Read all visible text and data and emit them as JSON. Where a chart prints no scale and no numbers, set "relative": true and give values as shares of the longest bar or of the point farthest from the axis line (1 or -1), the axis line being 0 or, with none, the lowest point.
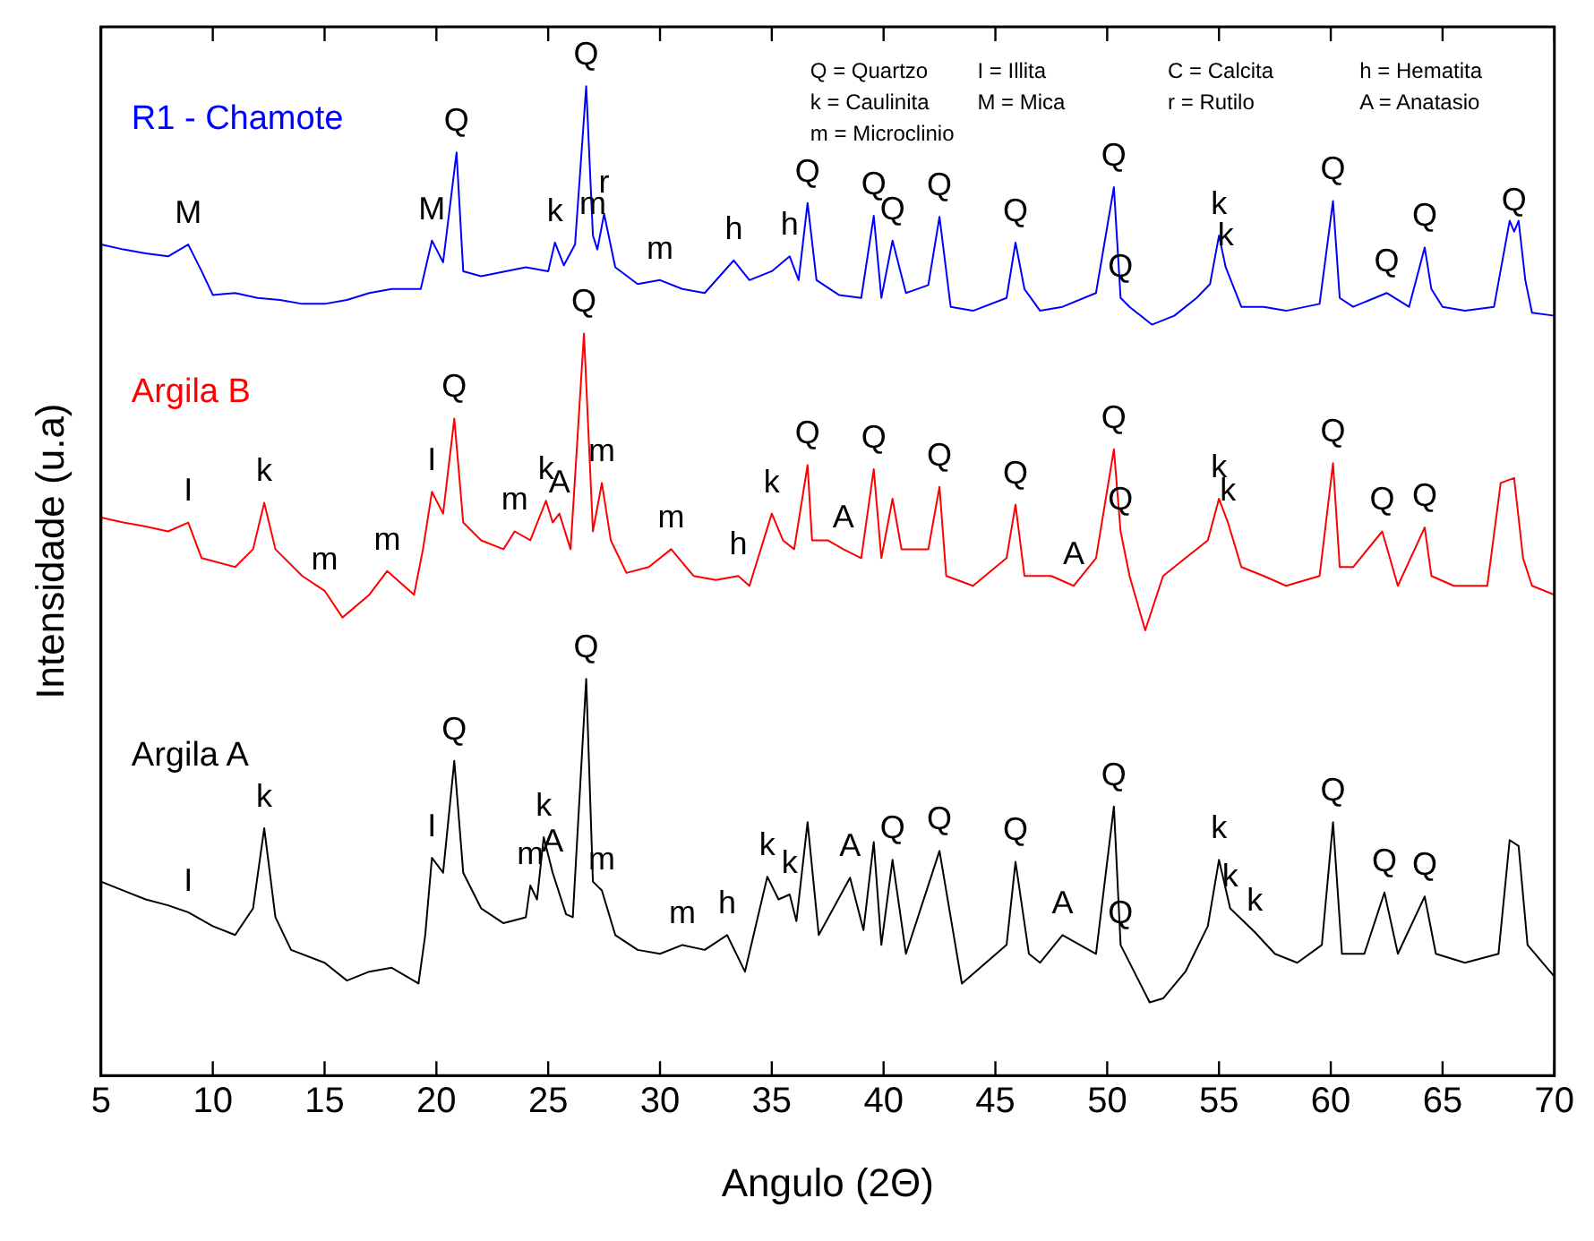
{
  "chart_data": {
    "type": "line",
    "xlabel": "Angulo (2Θ)",
    "ylabel": "Intensidade (u.a)",
    "relative": true,
    "xlim": [
      5,
      70
    ],
    "xticks": [
      5,
      10,
      15,
      20,
      25,
      30,
      35,
      40,
      45,
      50,
      55,
      60,
      65,
      70
    ],
    "grid": false,
    "legend": false,
    "marker": "none",
    "line_style": "solid",
    "series": [
      {
        "name": "R1 - Chamote",
        "color": "#0000ff",
        "x": [
          5,
          6,
          7,
          8,
          8.9,
          9.5,
          10,
          11,
          12,
          13,
          14,
          15,
          16,
          17,
          18,
          19.3,
          19.8,
          20.3,
          20.9,
          21.2,
          22,
          24,
          25,
          25.3,
          25.7,
          26.2,
          26.7,
          27.0,
          27.2,
          27.5,
          28,
          29,
          30,
          31,
          32,
          33.3,
          34,
          35,
          35.8,
          36.2,
          36.6,
          37,
          38,
          39,
          39.56,
          39.9,
          40.4,
          41,
          42,
          42.5,
          43,
          44,
          45.5,
          45.9,
          46.3,
          47,
          48,
          49.5,
          50.3,
          50.6,
          51,
          52,
          53,
          54,
          54.6,
          55.0,
          55.3,
          56,
          57,
          58,
          59.5,
          60.1,
          60.4,
          61,
          62.5,
          63.5,
          64.2,
          64.5,
          65,
          66,
          67.3,
          68.0,
          68.2,
          68.4,
          68.7,
          69,
          70
        ],
        "values": [
          0.84,
          0.835,
          0.831,
          0.828,
          0.84,
          0.813,
          0.789,
          0.791,
          0.786,
          0.784,
          0.78,
          0.78,
          0.784,
          0.791,
          0.795,
          0.795,
          0.844,
          0.822,
          0.933,
          0.813,
          0.808,
          0.817,
          0.813,
          0.842,
          0.819,
          0.84,
          1.0,
          0.849,
          0.835,
          0.871,
          0.817,
          0.8,
          0.804,
          0.795,
          0.791,
          0.824,
          0.804,
          0.813,
          0.828,
          0.804,
          0.882,
          0.804,
          0.789,
          0.786,
          0.869,
          0.786,
          0.844,
          0.791,
          0.799,
          0.868,
          0.777,
          0.773,
          0.786,
          0.842,
          0.795,
          0.773,
          0.777,
          0.791,
          0.898,
          0.786,
          0.777,
          0.759,
          0.768,
          0.786,
          0.8,
          0.849,
          0.817,
          0.777,
          0.777,
          0.773,
          0.78,
          0.884,
          0.786,
          0.777,
          0.791,
          0.777,
          0.837,
          0.795,
          0.777,
          0.773,
          0.777,
          0.864,
          0.853,
          0.864,
          0.804,
          0.771,
          0.768
        ]
      },
      {
        "name": "Argila B",
        "color": "#ff0000",
        "x": [
          5,
          6,
          7,
          8,
          8.9,
          9.5,
          11,
          11.8,
          12.3,
          12.8,
          14,
          15,
          15.8,
          17,
          17.8,
          19,
          19.4,
          19.8,
          20.3,
          20.8,
          21.2,
          22,
          23,
          23.5,
          24.2,
          24.9,
          25.2,
          25.5,
          26.0,
          26.6,
          27.0,
          27.4,
          27.8,
          28.5,
          29.5,
          30.5,
          31.5,
          32.5,
          33.5,
          34,
          35.0,
          35.5,
          36.0,
          36.6,
          36.8,
          37.5,
          38.2,
          39,
          39.56,
          39.9,
          40.4,
          40.8,
          42,
          42.5,
          42.8,
          44,
          45.5,
          45.9,
          46.3,
          47.5,
          48.5,
          49.5,
          50.3,
          50.6,
          51,
          51.7,
          52.5,
          53.5,
          54.5,
          55.0,
          55.4,
          56,
          57,
          58,
          59.5,
          60.1,
          60.4,
          61,
          62.3,
          63,
          64.2,
          64.5,
          65.5,
          67,
          67.6,
          68.2,
          68.6,
          69,
          70
        ],
        "values": [
          0.564,
          0.559,
          0.555,
          0.55,
          0.559,
          0.523,
          0.514,
          0.532,
          0.579,
          0.532,
          0.505,
          0.49,
          0.463,
          0.486,
          0.51,
          0.486,
          0.532,
          0.59,
          0.568,
          0.664,
          0.559,
          0.541,
          0.532,
          0.55,
          0.541,
          0.581,
          0.559,
          0.568,
          0.532,
          0.75,
          0.55,
          0.599,
          0.541,
          0.508,
          0.514,
          0.532,
          0.505,
          0.501,
          0.505,
          0.495,
          0.568,
          0.541,
          0.532,
          0.617,
          0.541,
          0.541,
          0.532,
          0.523,
          0.613,
          0.523,
          0.583,
          0.532,
          0.532,
          0.595,
          0.505,
          0.495,
          0.523,
          0.577,
          0.505,
          0.505,
          0.495,
          0.523,
          0.633,
          0.55,
          0.505,
          0.45,
          0.505,
          0.523,
          0.541,
          0.583,
          0.559,
          0.514,
          0.505,
          0.495,
          0.505,
          0.619,
          0.514,
          0.514,
          0.55,
          0.495,
          0.554,
          0.505,
          0.495,
          0.495,
          0.599,
          0.604,
          0.523,
          0.495,
          0.486
        ]
      },
      {
        "name": "Argila A",
        "color": "#000000",
        "x": [
          5,
          6,
          7,
          8,
          8.9,
          10,
          11,
          11.8,
          12.3,
          12.8,
          13.5,
          15,
          16,
          17,
          18,
          19.2,
          19.5,
          19.8,
          20.3,
          20.8,
          21.2,
          22,
          23,
          24,
          24.2,
          24.5,
          24.8,
          25.2,
          25.8,
          26.1,
          26.7,
          27.0,
          27.4,
          28,
          29,
          30,
          31,
          32,
          33,
          33.8,
          34.8,
          35.3,
          35.8,
          36.1,
          36.6,
          37.1,
          38.5,
          39.1,
          39.56,
          39.9,
          40.4,
          41,
          42.5,
          43.5,
          45.5,
          45.9,
          46.5,
          47,
          48.0,
          49.5,
          50.3,
          50.6,
          51.9,
          52.5,
          53.5,
          54.5,
          55.0,
          55.5,
          56.6,
          57.5,
          58.5,
          59.6,
          60.1,
          60.5,
          61.5,
          62.4,
          63,
          64.2,
          64.7,
          66,
          67.5,
          68.0,
          68.4,
          68.8,
          70
        ],
        "values": [
          0.196,
          0.187,
          0.178,
          0.172,
          0.165,
          0.151,
          0.142,
          0.169,
          0.25,
          0.16,
          0.127,
          0.114,
          0.096,
          0.105,
          0.109,
          0.093,
          0.142,
          0.22,
          0.205,
          0.318,
          0.205,
          0.169,
          0.154,
          0.16,
          0.192,
          0.178,
          0.241,
          0.205,
          0.163,
          0.16,
          0.401,
          0.196,
          0.187,
          0.142,
          0.127,
          0.123,
          0.132,
          0.127,
          0.142,
          0.105,
          0.201,
          0.178,
          0.183,
          0.156,
          0.256,
          0.142,
          0.2,
          0.147,
          0.236,
          0.132,
          0.218,
          0.123,
          0.227,
          0.093,
          0.132,
          0.216,
          0.123,
          0.114,
          0.142,
          0.123,
          0.272,
          0.132,
          0.074,
          0.078,
          0.105,
          0.151,
          0.218,
          0.169,
          0.145,
          0.123,
          0.114,
          0.132,
          0.256,
          0.123,
          0.123,
          0.185,
          0.123,
          0.181,
          0.123,
          0.114,
          0.123,
          0.238,
          0.232,
          0.132,
          0.1
        ]
      }
    ],
    "annotations": [
      "Q = Quartzo",
      "I = Illita",
      "C = Calcita",
      "h = Hematita",
      "k = Caulinita",
      "M = Mica",
      "r = Rutilo",
      "A = Anatasio",
      "m = Microclinio",
      {
        "text": "M",
        "x": 8.9,
        "y": 0.84
      },
      {
        "text": "Q",
        "x": 20.9,
        "y": 0.933
      },
      {
        "text": "M",
        "x": 19.8,
        "y": 0.844
      },
      {
        "text": "Q",
        "x": 26.7,
        "y": 1.0
      },
      {
        "text": "m",
        "x": 27.0,
        "y": 0.849
      },
      {
        "text": "k",
        "x": 25.3,
        "y": 0.842
      },
      {
        "text": "r",
        "x": 27.5,
        "y": 0.871
      },
      {
        "text": "m",
        "x": 30,
        "y": 0.804
      },
      {
        "text": "h",
        "x": 33.3,
        "y": 0.824
      },
      {
        "text": "h",
        "x": 35.8,
        "y": 0.828
      },
      {
        "text": "Q",
        "x": 36.6,
        "y": 0.882
      },
      {
        "text": "Q",
        "x": 39.56,
        "y": 0.869
      },
      {
        "text": "Q",
        "x": 40.4,
        "y": 0.844
      },
      {
        "text": "Q",
        "x": 42.5,
        "y": 0.868
      },
      {
        "text": "Q",
        "x": 45.9,
        "y": 0.842
      },
      {
        "text": "Q",
        "x": 50.3,
        "y": 0.898
      },
      {
        "text": "Q",
        "x": 50.6,
        "y": 0.786
      },
      {
        "text": "k",
        "x": 55.0,
        "y": 0.849
      },
      {
        "text": "k",
        "x": 55.3,
        "y": 0.817
      },
      {
        "text": "Q",
        "x": 60.1,
        "y": 0.884
      },
      {
        "text": "Q",
        "x": 62.5,
        "y": 0.791
      },
      {
        "text": "Q",
        "x": 64.2,
        "y": 0.837
      },
      {
        "text": "Q",
        "x": 68.2,
        "y": 0.853
      },
      {
        "text": "I",
        "x": 8.9,
        "y": 0.559
      },
      {
        "text": "k",
        "x": 12.3,
        "y": 0.579
      },
      {
        "text": "m",
        "x": 15,
        "y": 0.49
      },
      {
        "text": "m",
        "x": 17.8,
        "y": 0.51
      },
      {
        "text": "I",
        "x": 19.8,
        "y": 0.59
      },
      {
        "text": "Q",
        "x": 20.8,
        "y": 0.664
      },
      {
        "text": "m",
        "x": 23.5,
        "y": 0.55
      },
      {
        "text": "k",
        "x": 24.9,
        "y": 0.581
      },
      {
        "text": "A",
        "x": 25.5,
        "y": 0.568
      },
      {
        "text": "m",
        "x": 27.4,
        "y": 0.599
      },
      {
        "text": "Q",
        "x": 26.6,
        "y": 0.75
      },
      {
        "text": "m",
        "x": 30.5,
        "y": 0.532
      },
      {
        "text": "h",
        "x": 33.5,
        "y": 0.505
      },
      {
        "text": "k",
        "x": 35.0,
        "y": 0.568
      },
      {
        "text": "Q",
        "x": 36.6,
        "y": 0.617
      },
      {
        "text": "A",
        "x": 38.2,
        "y": 0.532
      },
      {
        "text": "Q",
        "x": 39.56,
        "y": 0.613
      },
      {
        "text": "Q",
        "x": 42.5,
        "y": 0.595
      },
      {
        "text": "Q",
        "x": 45.9,
        "y": 0.577
      },
      {
        "text": "A",
        "x": 48.5,
        "y": 0.495
      },
      {
        "text": "Q",
        "x": 50.3,
        "y": 0.633
      },
      {
        "text": "Q",
        "x": 50.6,
        "y": 0.55
      },
      {
        "text": "k",
        "x": 55.0,
        "y": 0.583
      },
      {
        "text": "k",
        "x": 55.4,
        "y": 0.559
      },
      {
        "text": "Q",
        "x": 60.1,
        "y": 0.619
      },
      {
        "text": "Q",
        "x": 62.3,
        "y": 0.55
      },
      {
        "text": "Q",
        "x": 64.2,
        "y": 0.554
      },
      {
        "text": "I",
        "x": 8.9,
        "y": 0.165
      },
      {
        "text": "k",
        "x": 12.3,
        "y": 0.25
      },
      {
        "text": "I",
        "x": 19.8,
        "y": 0.22
      },
      {
        "text": "Q",
        "x": 20.8,
        "y": 0.318
      },
      {
        "text": "k",
        "x": 24.8,
        "y": 0.241
      },
      {
        "text": "m",
        "x": 24.2,
        "y": 0.192
      },
      {
        "text": "A",
        "x": 25.2,
        "y": 0.205
      },
      {
        "text": "Q",
        "x": 26.7,
        "y": 0.401
      },
      {
        "text": "m",
        "x": 27.4,
        "y": 0.187
      },
      {
        "text": "m",
        "x": 31,
        "y": 0.132
      },
      {
        "text": "h",
        "x": 33,
        "y": 0.142
      },
      {
        "text": "k",
        "x": 34.8,
        "y": 0.201
      },
      {
        "text": "k",
        "x": 35.8,
        "y": 0.183
      },
      {
        "text": "A",
        "x": 38.5,
        "y": 0.2
      },
      {
        "text": "Q",
        "x": 40.4,
        "y": 0.218
      },
      {
        "text": "Q",
        "x": 42.5,
        "y": 0.227
      },
      {
        "text": "Q",
        "x": 45.9,
        "y": 0.216
      },
      {
        "text": "A",
        "x": 48.0,
        "y": 0.142
      },
      {
        "text": "Q",
        "x": 50.3,
        "y": 0.272
      },
      {
        "text": "Q",
        "x": 50.6,
        "y": 0.132
      },
      {
        "text": "k",
        "x": 55.0,
        "y": 0.218
      },
      {
        "text": "k",
        "x": 55.5,
        "y": 0.169
      },
      {
        "text": "k",
        "x": 56.6,
        "y": 0.145
      },
      {
        "text": "Q",
        "x": 60.1,
        "y": 0.256
      },
      {
        "text": "Q",
        "x": 62.4,
        "y": 0.185
      },
      {
        "text": "Q",
        "x": 64.2,
        "y": 0.181
      }
    ]
  }
}
